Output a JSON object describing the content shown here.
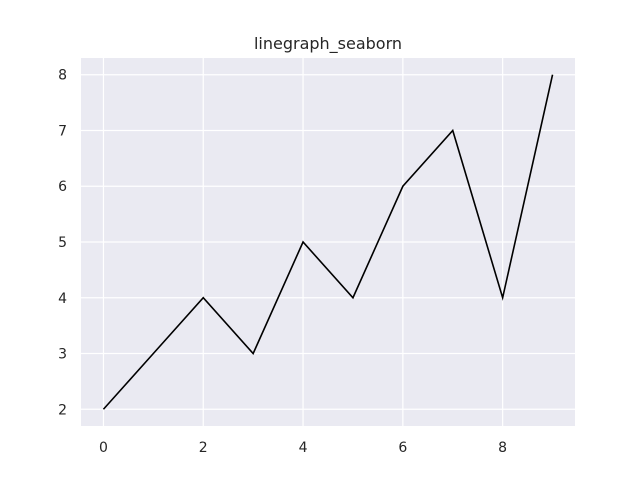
{
  "chart_data": {
    "type": "line",
    "title": "linegraph_seaborn",
    "xlabel": "",
    "ylabel": "",
    "x": [
      0,
      1,
      2,
      3,
      4,
      5,
      6,
      7,
      8,
      9
    ],
    "series": [
      {
        "values": [
          2,
          3,
          4,
          3,
          5,
          4,
          6,
          7,
          4,
          8
        ]
      }
    ],
    "xlim": [
      -0.45,
      9.45
    ],
    "ylim": [
      1.7,
      8.3
    ],
    "xticks": [
      0,
      2,
      4,
      6,
      8
    ],
    "yticks": [
      2,
      3,
      4,
      5,
      6,
      7,
      8
    ],
    "grid": true,
    "legend": "none",
    "colors": {
      "line": "#000000",
      "plot_background": "#eaeaf2",
      "grid": "#ffffff",
      "text": "#262626"
    }
  }
}
